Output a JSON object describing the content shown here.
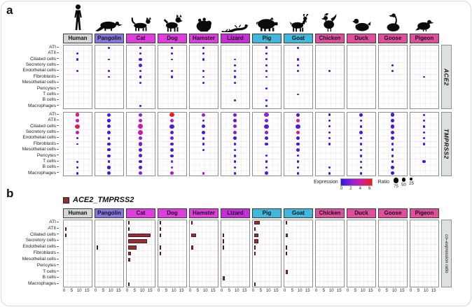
{
  "panel_a": {
    "label": "a",
    "gene_labels": [
      "ACE2",
      "TMPRSS2"
    ],
    "legend": {
      "expression_label": "Expression",
      "expression_ticks": [
        "0",
        "2",
        "4",
        "6"
      ],
      "expression_gradient": [
        "#2d18d8",
        "#8c22d6",
        "#cf1da0",
        "#ed1e15"
      ],
      "ratio_label": "Ratio",
      "ratio_ticks": [
        "75",
        "50",
        "25"
      ]
    }
  },
  "panel_b": {
    "label": "b",
    "title": "ACE2_TMPRSS2",
    "right_label": "co–expression ratio",
    "x_ticks": [
      "0",
      "5",
      "10",
      "15"
    ],
    "bar_color": "#8e3138"
  },
  "cell_types": [
    "ATI",
    "ATII",
    "Ciliated cells",
    "Secretory cells",
    "Endothelial cells",
    "Fibroblasts",
    "Mesothelial cells",
    "Pericytes",
    "T cells",
    "B cells",
    "Macrophages"
  ],
  "species": [
    {
      "name": "Human",
      "color": "#d6d6d6",
      "icon": "human-silhouette"
    },
    {
      "name": "Pangolin",
      "color": "#8577de",
      "icon": "pangolin-silhouette"
    },
    {
      "name": "Cat",
      "color": "#df3edf",
      "icon": "cat-silhouette"
    },
    {
      "name": "Dog",
      "color": "#df3edf",
      "icon": "dog-silhouette"
    },
    {
      "name": "Hamster",
      "color": "#df3edf",
      "icon": "hamster-silhouette"
    },
    {
      "name": "Lizard",
      "color": "#c62fd8",
      "icon": "lizard-silhouette"
    },
    {
      "name": "Pig",
      "color": "#43b6db",
      "icon": "pig-silhouette"
    },
    {
      "name": "Goat",
      "color": "#43b6db",
      "icon": "goat-silhouette"
    },
    {
      "name": "Chicken",
      "color": "#e04f9e",
      "icon": "chicken-silhouette"
    },
    {
      "name": "Duck",
      "color": "#e04f9e",
      "icon": "duck-silhouette"
    },
    {
      "name": "Goose",
      "color": "#e04f9e",
      "icon": "goose-silhouette"
    },
    {
      "name": "Pigeon",
      "color": "#e04f9e",
      "icon": "pigeon-silhouette"
    }
  ],
  "chart_data": [
    {
      "type": "dotplot",
      "gene": "ACE2",
      "rows": "cell_types",
      "size_encodes": "Ratio (%)",
      "color_encodes": "Expression (0-8)",
      "dots": {
        "Human": [
          null,
          [
            25,
            0.5
          ],
          [
            28,
            0.5
          ],
          null,
          [
            25,
            0.5
          ],
          null,
          null,
          null,
          null,
          null,
          null
        ],
        "Pangolin": [
          [
            18,
            0.5
          ],
          null,
          [
            18,
            0.5
          ],
          null,
          [
            18,
            0.5
          ],
          [
            18,
            0.5
          ],
          null,
          null,
          null,
          null,
          null
        ],
        "Cat": [
          [
            18,
            0.5
          ],
          [
            25,
            0.5
          ],
          [
            45,
            1
          ],
          [
            45,
            1
          ],
          [
            30,
            0.5
          ],
          [
            25,
            0.5
          ],
          [
            25,
            0.5
          ],
          null,
          null,
          null,
          [
            18,
            0.5
          ]
        ],
        "Dog": [
          [
            18,
            0.5
          ],
          [
            18,
            0.5
          ],
          [
            18,
            0.5
          ],
          null,
          [
            25,
            0.5
          ],
          [
            25,
            0.5
          ],
          null,
          null,
          null,
          null,
          null
        ],
        "Hamster": [
          [
            18,
            0.5
          ],
          [
            30,
            0.5
          ],
          [
            30,
            0.5
          ],
          null,
          [
            18,
            0.5
          ],
          [
            18,
            0.5
          ],
          [
            30,
            0.5
          ],
          null,
          null,
          null,
          null
        ],
        "Lizard": [
          null,
          null,
          [
            18,
            0.5
          ],
          [
            18,
            0.5
          ],
          [
            22,
            0.5
          ],
          [
            22,
            0.5
          ],
          [
            22,
            0.5
          ],
          null,
          null,
          [
            18,
            0.5
          ],
          null
        ],
        "Pig": [
          [
            30,
            1
          ],
          [
            20,
            0.5
          ],
          [
            22,
            0.5
          ],
          [
            22,
            0.5
          ],
          [
            22,
            0.5
          ],
          [
            20,
            0.5
          ],
          null,
          [
            18,
            0.5
          ],
          null,
          [
            18,
            0.5
          ],
          [
            18,
            0.5
          ]
        ],
        "Goat": [
          [
            18,
            0.5
          ],
          null,
          [
            25,
            0.5
          ],
          [
            20,
            0.5
          ],
          [
            20,
            0.5
          ],
          null,
          null,
          null,
          [
            18,
            0.5
          ],
          null,
          null
        ],
        "Chicken": [
          null,
          null,
          null,
          null,
          [
            18,
            0.5
          ],
          null,
          null,
          null,
          null,
          null,
          null
        ],
        "Duck": [
          null,
          null,
          null,
          null,
          null,
          null,
          null,
          null,
          null,
          null,
          null
        ],
        "Goose": [
          null,
          null,
          null,
          [
            16,
            0.5
          ],
          [
            16,
            0.5
          ],
          null,
          null,
          null,
          null,
          null,
          null
        ],
        "Pigeon": [
          null,
          null,
          null,
          null,
          null,
          [
            16,
            0.5
          ],
          null,
          null,
          null,
          null,
          null
        ]
      }
    },
    {
      "type": "dotplot",
      "gene": "TMPRSS2",
      "rows": "cell_types",
      "size_encodes": "Ratio (%)",
      "color_encodes": "Expression (0-8)",
      "dots": {
        "Human": [
          [
            55,
            5.8
          ],
          [
            55,
            4
          ],
          [
            65,
            7
          ],
          [
            55,
            5
          ],
          [
            20,
            0.5
          ],
          [
            20,
            0.5
          ],
          null,
          null,
          [
            20,
            0.5
          ],
          [
            20,
            0.5
          ],
          [
            30,
            0.5
          ]
        ],
        "Pangolin": [
          [
            50,
            1
          ],
          [
            38,
            0.5
          ],
          [
            50,
            0.5
          ],
          [
            45,
            0.5
          ],
          [
            33,
            0.5
          ],
          [
            45,
            0.5
          ],
          [
            38,
            0.5
          ],
          [
            38,
            0.5
          ],
          [
            33,
            0.5
          ],
          [
            38,
            0.5
          ],
          [
            50,
            0.5
          ]
        ],
        "Cat": [
          [
            50,
            2.5
          ],
          [
            60,
            4
          ],
          [
            75,
            5
          ],
          [
            80,
            5
          ],
          [
            50,
            3
          ],
          [
            50,
            2
          ],
          [
            45,
            1
          ],
          [
            45,
            0.8
          ],
          [
            38,
            0.5
          ],
          [
            45,
            1
          ],
          [
            50,
            2.5
          ]
        ],
        "Dog": [
          [
            70,
            7.8
          ],
          [
            50,
            4
          ],
          [
            70,
            1
          ],
          [
            55,
            1
          ],
          [
            50,
            2
          ],
          [
            45,
            0.8
          ],
          [
            45,
            0.8
          ],
          [
            38,
            0.5
          ],
          [
            33,
            3
          ],
          [
            33,
            3
          ],
          [
            45,
            4
          ]
        ],
        "Hamster": [
          [
            50,
            3.5
          ],
          [
            33,
            0.5
          ],
          [
            50,
            0.8
          ],
          [
            45,
            0.8
          ],
          [
            33,
            0.5
          ],
          [
            28,
            0.5
          ],
          [
            28,
            0.5
          ],
          null,
          null,
          null,
          [
            33,
            3.5
          ]
        ],
        "Lizard": [
          [
            45,
            2
          ],
          [
            45,
            1.2
          ],
          [
            50,
            2.5
          ],
          [
            50,
            2.5
          ],
          [
            45,
            0.8
          ],
          [
            33,
            0.5
          ],
          [
            20,
            0.5
          ],
          [
            33,
            0.5
          ],
          [
            33,
            0.5
          ],
          [
            20,
            0.5
          ],
          [
            33,
            0.5
          ]
        ],
        "Pig": [
          [
            70,
            3
          ],
          [
            50,
            2.2
          ],
          [
            65,
            1.2
          ],
          [
            50,
            2.5
          ],
          [
            45,
            0.8
          ],
          [
            45,
            0.8
          ],
          null,
          [
            20,
            0.5
          ],
          [
            33,
            0.5
          ],
          [
            33,
            0.5
          ],
          [
            45,
            0.8
          ]
        ],
        "Goat": [
          [
            45,
            0.8
          ],
          [
            50,
            5
          ],
          [
            65,
            1
          ],
          [
            55,
            5
          ],
          [
            45,
            0.8
          ],
          [
            38,
            0.5
          ],
          [
            45,
            0.8
          ],
          [
            20,
            0.5
          ],
          [
            33,
            0.5
          ],
          [
            33,
            0.5
          ],
          [
            33,
            0.5
          ]
        ],
        "Chicken": [
          [
            33,
            0.5
          ],
          [
            20,
            0.5
          ],
          [
            20,
            0.5
          ],
          [
            25,
            0.5
          ],
          [
            20,
            0.5
          ],
          [
            33,
            0.5
          ],
          null,
          null,
          null,
          [
            33,
            0.5
          ],
          [
            28,
            0.5
          ]
        ],
        "Duck": [
          [
            45,
            0.5
          ],
          [
            28,
            0.5
          ],
          [
            30,
            0.5
          ],
          [
            45,
            0.5
          ],
          [
            30,
            0.5
          ],
          [
            30,
            0.5
          ],
          [
            20,
            0.5
          ],
          [
            30,
            0.5
          ],
          [
            20,
            0.5
          ],
          [
            30,
            0.5
          ],
          [
            30,
            0.5
          ]
        ],
        "Goose": [
          [
            55,
            0.8
          ],
          [
            45,
            0.5
          ],
          [
            55,
            0.8
          ],
          [
            55,
            0.8
          ],
          [
            45,
            0.5
          ],
          [
            33,
            0.5
          ],
          [
            33,
            0.5
          ],
          [
            33,
            0.5
          ],
          [
            33,
            0.5
          ],
          [
            45,
            0.5
          ],
          [
            45,
            0.5
          ]
        ],
        "Pigeon": [
          [
            25,
            0.5
          ],
          [
            25,
            0.5
          ],
          [
            25,
            0.5
          ],
          [
            25,
            0.5
          ],
          [
            25,
            0.5
          ],
          [
            25,
            0.5
          ],
          null,
          null,
          [
            38,
            0.5
          ],
          null,
          null
        ]
      }
    },
    {
      "type": "bar",
      "title": "ACE2_TMPRSS2 co-expression ratio",
      "xlim": [
        0,
        16.5
      ],
      "x_ticks": [
        0,
        5,
        10,
        15
      ],
      "bars": {
        "Human": {
          "ATII": 0.8,
          "Ciliated cells": 0.8
        },
        "Pangolin": {
          "Endothelial cells": 0.15
        },
        "Cat": {
          "ATI": 0.2,
          "ATII": 1.2,
          "Ciliated cells": 15,
          "Secretory cells": 12.5,
          "Endothelial cells": 5.5,
          "Fibroblasts": 2,
          "Mesothelial cells": 1.5,
          "Macrophages": 0.3
        },
        "Dog": {
          "ATI": 0.2,
          "ATII": 0.2,
          "Ciliated cells": 0.6,
          "Endothelial cells": 0.2,
          "Fibroblasts": 0.8
        },
        "Hamster": {
          "ATI": 0.3,
          "Ciliated cells": 3.5,
          "Endothelial cells": 1.8
        },
        "Lizard": {
          "Ciliated cells": 1.2,
          "Secretory cells": 0.9,
          "Endothelial cells": 0.9,
          "B cells": 1.6
        },
        "Pig": {
          "ATI": 4,
          "ATII": 1.2,
          "Ciliated cells": 3,
          "Secretory cells": 2.8,
          "Endothelial cells": 1,
          "Fibroblasts": 1.2,
          "Macrophages": 0.2
        },
        "Goat": {
          "ATI": 0.2,
          "Ciliated cells": 1.5,
          "Endothelial cells": 1,
          "Fibroblasts": 0.3,
          "T cells": 1.5
        },
        "Chicken": {},
        "Duck": {},
        "Goose": {},
        "Pigeon": {}
      }
    }
  ]
}
